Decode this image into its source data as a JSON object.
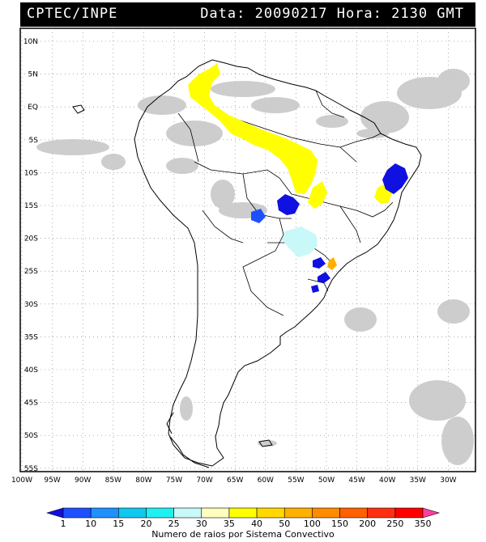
{
  "header": {
    "left_title": "CPTEC/INPE",
    "right_title": "Data: 20090217 Hora: 2130 GMT"
  },
  "map": {
    "lat_labels": [
      "10N",
      "5N",
      "EQ",
      "5S",
      "10S",
      "15S",
      "20S",
      "25S",
      "30S",
      "35S",
      "40S",
      "45S",
      "50S",
      "55S"
    ],
    "lon_labels": [
      "100W",
      "95W",
      "90W",
      "85W",
      "80W",
      "75W",
      "70W",
      "65W",
      "60W",
      "55W",
      "50W",
      "45W",
      "40W",
      "35W",
      "30W"
    ]
  },
  "legend": {
    "labels": [
      "1",
      "10",
      "15",
      "20",
      "25",
      "30",
      "35",
      "40",
      "50",
      "100",
      "150",
      "200",
      "250",
      "350"
    ],
    "colors": [
      "#1010e0",
      "#1e50ff",
      "#2090ff",
      "#10c8f0",
      "#20f0f0",
      "#c8f8f8",
      "#fefec0",
      "#ffff00",
      "#ffd800",
      "#ffb000",
      "#ff8c00",
      "#ff6000",
      "#ff3010",
      "#ff0000",
      "#ff40a0"
    ],
    "caption": "Numero de raios por Sistema Convectivo"
  }
}
